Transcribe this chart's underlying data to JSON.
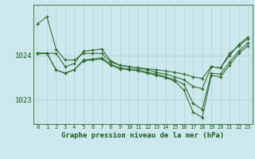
{
  "background_color": "#cce8ec",
  "grid_color": "#aad0d8",
  "line_color": "#2d6a2d",
  "marker_color": "#2d6a2d",
  "title": "Graphe pression niveau de la mer (hPa)",
  "xlim": [
    -0.5,
    23.5
  ],
  "ylim": [
    1022.45,
    1025.15
  ],
  "yticks": [
    1023,
    1024
  ],
  "xtick_labels": [
    "0",
    "1",
    "2",
    "3",
    "4",
    "5",
    "6",
    "7",
    "8",
    "9",
    "10",
    "11",
    "12",
    "13",
    "14",
    "15",
    "16",
    "17",
    "18",
    "19",
    "20",
    "21",
    "22",
    "23"
  ],
  "series": [
    [
      1024.72,
      1024.88,
      1024.15,
      1023.9,
      1023.9,
      1024.05,
      1024.05,
      1024.05,
      1023.85,
      1023.78,
      1023.75,
      1023.72,
      1023.7,
      1023.68,
      1023.65,
      1023.62,
      1023.58,
      1023.52,
      1023.48,
      1023.75,
      1023.72,
      1024.05,
      1024.22,
      1024.38
    ],
    [
      1024.05,
      1024.05,
      1024.05,
      1023.75,
      1023.82,
      1024.1,
      1024.12,
      1024.15,
      1023.88,
      1023.78,
      1023.75,
      1023.72,
      1023.68,
      1023.62,
      1023.58,
      1023.52,
      1023.45,
      1023.3,
      1023.25,
      1023.75,
      1023.72,
      1024.0,
      1024.25,
      1024.42
    ],
    [
      1024.05,
      1024.05,
      1023.68,
      1023.6,
      1023.68,
      1023.9,
      1023.92,
      1023.95,
      1023.8,
      1023.72,
      1023.7,
      1023.68,
      1023.62,
      1023.58,
      1023.52,
      1023.45,
      1023.35,
      1022.92,
      1022.78,
      1023.6,
      1023.58,
      1023.85,
      1024.1,
      1024.28
    ],
    [
      1024.05,
      1024.05,
      1023.68,
      1023.6,
      1023.68,
      1023.88,
      1023.9,
      1023.92,
      1023.78,
      1023.7,
      1023.68,
      1023.65,
      1023.6,
      1023.55,
      1023.5,
      1023.42,
      1023.22,
      1022.72,
      1022.6,
      1023.55,
      1023.52,
      1023.78,
      1024.05,
      1024.22
    ]
  ]
}
